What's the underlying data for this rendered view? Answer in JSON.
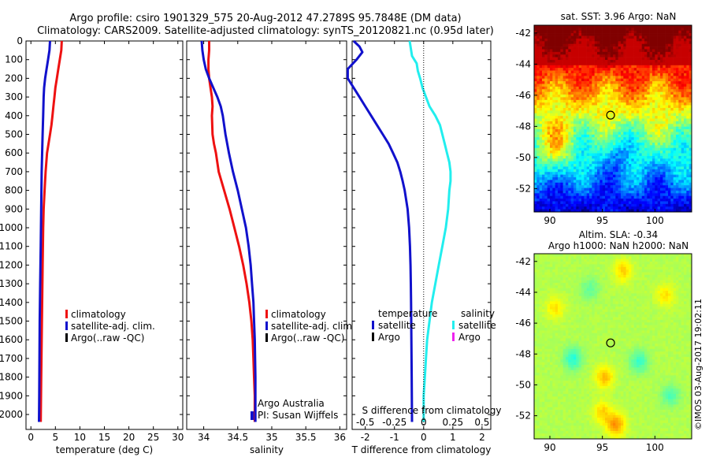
{
  "header": {
    "line1": "Argo profile: csiro 1901329_575 20-Aug-2012 47.2789S 95.7848E (DM data)",
    "line2": "Climatology: CARS2009. Satellite-adjusted climatology: synTS_20120821.nc (0.95d later)"
  },
  "colors": {
    "climatology": "#ee1111",
    "satellite": "#1111cc",
    "argo": "#000000",
    "sal_satellite": "#22eeee",
    "sal_argo": "#ee22ee"
  },
  "chart_data": [
    {
      "id": "temperature",
      "type": "line",
      "xlabel": "temperature (deg C)",
      "ylabel": "",
      "xlim": [
        -1,
        31
      ],
      "xticks": [
        0,
        5,
        10,
        15,
        20,
        25,
        30
      ],
      "xtick_labels": [
        "0",
        "5",
        "10",
        "15",
        "20",
        "25",
        "30"
      ],
      "ylim": [
        2080,
        0
      ],
      "yticks": [
        0,
        100,
        200,
        300,
        400,
        500,
        600,
        700,
        800,
        900,
        1000,
        1100,
        1200,
        1300,
        1400,
        1500,
        1600,
        1700,
        1800,
        1900,
        2000
      ],
      "ytick_labels": [
        "0",
        "100",
        "200",
        "300",
        "400",
        "500",
        "600",
        "700",
        "800",
        "900",
        "1000",
        "1100",
        "1200",
        "1300",
        "1400",
        "1500",
        "1600",
        "1700",
        "1800",
        "1900",
        "2000"
      ],
      "legend": [
        "climatology",
        "satellite-adj. clim.",
        "Argo(..raw -QC)"
      ],
      "series": [
        {
          "name": "climatology",
          "color": "#ee1111",
          "points": [
            [
              6.3,
              0
            ],
            [
              6.2,
              50
            ],
            [
              5.9,
              100
            ],
            [
              5.6,
              150
            ],
            [
              5.3,
              200
            ],
            [
              5.0,
              250
            ],
            [
              4.8,
              300
            ],
            [
              4.6,
              350
            ],
            [
              4.4,
              400
            ],
            [
              4.2,
              450
            ],
            [
              3.9,
              500
            ],
            [
              3.6,
              550
            ],
            [
              3.3,
              600
            ],
            [
              3.0,
              700
            ],
            [
              2.8,
              800
            ],
            [
              2.6,
              900
            ],
            [
              2.5,
              1000
            ],
            [
              2.4,
              1200
            ],
            [
              2.3,
              1400
            ],
            [
              2.2,
              1600
            ],
            [
              2.1,
              1800
            ],
            [
              2.0,
              2040
            ]
          ]
        },
        {
          "name": "satellite-adj. clim.",
          "color": "#1111cc",
          "points": [
            [
              3.9,
              0
            ],
            [
              3.8,
              50
            ],
            [
              3.5,
              100
            ],
            [
              3.2,
              150
            ],
            [
              2.9,
              200
            ],
            [
              2.7,
              250
            ],
            [
              2.6,
              300
            ],
            [
              2.5,
              400
            ],
            [
              2.4,
              500
            ],
            [
              2.3,
              600
            ],
            [
              2.2,
              700
            ],
            [
              2.1,
              900
            ],
            [
              2.0,
              1100
            ],
            [
              1.9,
              1300
            ],
            [
              1.8,
              1500
            ],
            [
              1.75,
              1700
            ],
            [
              1.7,
              1900
            ],
            [
              1.65,
              2040
            ]
          ]
        }
      ]
    },
    {
      "id": "salinity",
      "type": "line",
      "xlabel": "salinity",
      "ylabel": "",
      "xlim": [
        33.75,
        36.1
      ],
      "xticks": [
        34,
        34.5,
        35,
        35.5,
        36
      ],
      "xtick_labels": [
        "34",
        "34.5",
        "35",
        "35.5",
        "36"
      ],
      "ylim": [
        2080,
        0
      ],
      "legend": [
        "climatology",
        "satellite-adj. clim.",
        "Argo(..raw -QC)"
      ],
      "annotation": [
        "Argo Australia",
        "PI: Susan Wijffels"
      ],
      "series": [
        {
          "name": "climatology",
          "color": "#ee1111",
          "points": [
            [
              34.08,
              0
            ],
            [
              34.08,
              50
            ],
            [
              34.07,
              100
            ],
            [
              34.07,
              150
            ],
            [
              34.08,
              200
            ],
            [
              34.1,
              250
            ],
            [
              34.12,
              300
            ],
            [
              34.13,
              350
            ],
            [
              34.12,
              400
            ],
            [
              34.13,
              500
            ],
            [
              34.15,
              550
            ],
            [
              34.18,
              600
            ],
            [
              34.22,
              700
            ],
            [
              34.3,
              800
            ],
            [
              34.38,
              900
            ],
            [
              34.45,
              1000
            ],
            [
              34.52,
              1100
            ],
            [
              34.58,
              1200
            ],
            [
              34.63,
              1300
            ],
            [
              34.67,
              1400
            ],
            [
              34.7,
              1500
            ],
            [
              34.72,
              1600
            ],
            [
              34.73,
              1700
            ],
            [
              34.74,
              1800
            ],
            [
              34.75,
              1900
            ],
            [
              34.75,
              2040
            ]
          ]
        },
        {
          "name": "satellite-adj. clim.",
          "color": "#1111cc",
          "points": [
            [
              33.97,
              0
            ],
            [
              33.98,
              50
            ],
            [
              34.0,
              100
            ],
            [
              34.03,
              150
            ],
            [
              34.08,
              200
            ],
            [
              34.14,
              250
            ],
            [
              34.2,
              300
            ],
            [
              34.25,
              350
            ],
            [
              34.28,
              400
            ],
            [
              34.32,
              500
            ],
            [
              34.37,
              600
            ],
            [
              34.43,
              700
            ],
            [
              34.5,
              800
            ],
            [
              34.56,
              900
            ],
            [
              34.62,
              1000
            ],
            [
              34.66,
              1100
            ],
            [
              34.69,
              1200
            ],
            [
              34.71,
              1300
            ],
            [
              34.73,
              1400
            ],
            [
              34.74,
              1500
            ],
            [
              34.75,
              1600
            ],
            [
              34.76,
              1800
            ],
            [
              34.76,
              2040
            ]
          ]
        }
      ]
    },
    {
      "id": "difference",
      "type": "line",
      "xlabel": "T difference from climatology",
      "top_xlabel": "S difference from climatology",
      "xlim": [
        -2.45,
        2.3
      ],
      "xticks": [
        -2,
        -1,
        0,
        1,
        2
      ],
      "xtick_labels": [
        "-2",
        "-1",
        "0",
        "1",
        "2"
      ],
      "top_ticks": [
        -0.5,
        -0.25,
        0,
        0.25,
        0.5
      ],
      "top_tick_labels": [
        "-0.5",
        "-0.25",
        "0",
        "0.25",
        "0.5"
      ],
      "ylim": [
        2080,
        0
      ],
      "legend_left_title": "temperature",
      "legend_right_title": "salinity",
      "legend_left": [
        "satellite",
        "Argo"
      ],
      "legend_right": [
        "satellite",
        "Argo"
      ],
      "series": [
        {
          "name": "satellite",
          "quantity": "temperature",
          "color": "#1111cc",
          "points": [
            [
              -2.4,
              0
            ],
            [
              -2.2,
              30
            ],
            [
              -2.1,
              60
            ],
            [
              -2.3,
              100
            ],
            [
              -2.6,
              150
            ],
            [
              -2.6,
              200
            ],
            [
              -2.4,
              250
            ],
            [
              -2.2,
              300
            ],
            [
              -2.0,
              350
            ],
            [
              -1.8,
              400
            ],
            [
              -1.6,
              450
            ],
            [
              -1.4,
              500
            ],
            [
              -1.2,
              550
            ],
            [
              -1.05,
              600
            ],
            [
              -0.9,
              650
            ],
            [
              -0.8,
              700
            ],
            [
              -0.72,
              750
            ],
            [
              -0.65,
              800
            ],
            [
              -0.55,
              900
            ],
            [
              -0.5,
              1000
            ],
            [
              -0.47,
              1100
            ],
            [
              -0.45,
              1200
            ],
            [
              -0.44,
              1300
            ],
            [
              -0.43,
              1400
            ],
            [
              -0.42,
              1600
            ],
            [
              -0.41,
              1800
            ],
            [
              -0.4,
              2040
            ]
          ]
        },
        {
          "name": "satellite",
          "quantity": "salinity",
          "color": "#22eeee",
          "points": [
            [
              -0.12,
              0
            ],
            [
              -0.11,
              40
            ],
            [
              -0.1,
              80
            ],
            [
              -0.08,
              100
            ],
            [
              -0.06,
              120
            ],
            [
              -0.05,
              160
            ],
            [
              -0.03,
              200
            ],
            [
              -0.01,
              250
            ],
            [
              0.02,
              300
            ],
            [
              0.05,
              350
            ],
            [
              0.1,
              400
            ],
            [
              0.14,
              450
            ],
            [
              0.16,
              500
            ],
            [
              0.18,
              550
            ],
            [
              0.2,
              600
            ],
            [
              0.22,
              650
            ],
            [
              0.23,
              700
            ],
            [
              0.23,
              750
            ],
            [
              0.22,
              800
            ],
            [
              0.21,
              900
            ],
            [
              0.19,
              1000
            ],
            [
              0.16,
              1100
            ],
            [
              0.13,
              1200
            ],
            [
              0.1,
              1300
            ],
            [
              0.07,
              1400
            ],
            [
              0.05,
              1500
            ],
            [
              0.03,
              1600
            ],
            [
              0.02,
              1700
            ],
            [
              0.01,
              1800
            ],
            [
              0.0,
              1900
            ],
            [
              0.0,
              2040
            ]
          ]
        }
      ]
    },
    {
      "id": "sst-map",
      "type": "heatmap",
      "title": "sat. SST: 3.96 Argo: NaN",
      "xlim": [
        88.5,
        103.5
      ],
      "ylim": [
        -53.5,
        -41.5
      ],
      "xticks": [
        90,
        95,
        100
      ],
      "xtick_labels": [
        "90",
        "95",
        "100"
      ],
      "yticks": [
        -42,
        -44,
        -46,
        -48,
        -50,
        -52
      ],
      "ytick_labels": [
        "-42",
        "-44",
        "-46",
        "-48",
        "-50",
        "-52"
      ],
      "marker": {
        "lon": 95.78,
        "lat": -47.28
      }
    },
    {
      "id": "sla-map",
      "type": "heatmap",
      "title": "Altim. SLA: -0.34",
      "subtitle": "Argo h1000: NaN h2000: NaN",
      "xlim": [
        88.5,
        103.5
      ],
      "ylim": [
        -53.5,
        -41.5
      ],
      "xticks": [
        90,
        95,
        100
      ],
      "xtick_labels": [
        "90",
        "95",
        "100"
      ],
      "yticks": [
        -42,
        -44,
        -46,
        -48,
        -50,
        -52
      ],
      "ytick_labels": [
        "-42",
        "-44",
        "-46",
        "-48",
        "-50",
        "-52"
      ],
      "marker": {
        "lon": 95.78,
        "lat": -47.28
      }
    }
  ],
  "credit": "©IMOS 03-Aug-2017 19:02:11"
}
